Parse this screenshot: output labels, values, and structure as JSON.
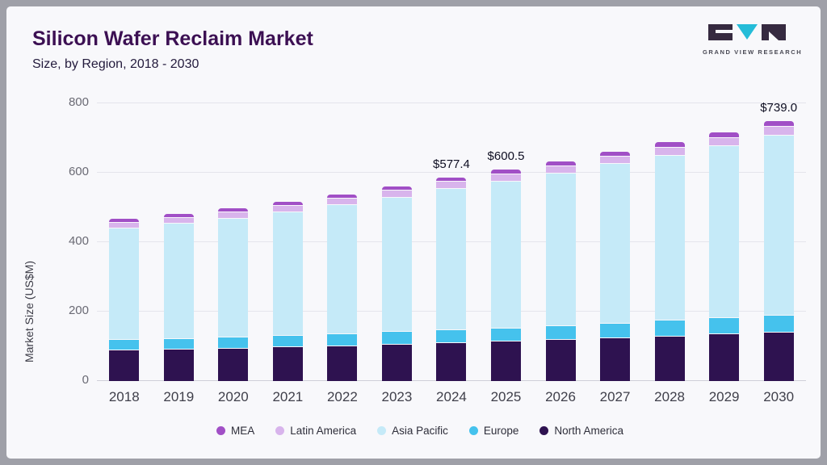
{
  "header": {
    "title": "Silicon Wafer Reclaim Market",
    "subtitle": "Size, by Region, 2018 - 2030"
  },
  "logo": {
    "text": "GRAND VIEW RESEARCH",
    "dark_color": "#362a40",
    "accent_color": "#25bcd8"
  },
  "chart_data": {
    "type": "bar",
    "stacked": true,
    "title": "Silicon Wafer Reclaim Market Size, by Region, 2018 - 2030",
    "ylabel": "Market Size (US$M)",
    "ylim": [
      0,
      800
    ],
    "yticks": [
      0,
      200,
      400,
      600,
      800
    ],
    "grid": true,
    "legend_position": "bottom",
    "categories": [
      "2018",
      "2019",
      "2020",
      "2021",
      "2022",
      "2023",
      "2024",
      "2025",
      "2026",
      "2027",
      "2028",
      "2029",
      "2030"
    ],
    "series": [
      {
        "name": "North America",
        "color": "#2e1250",
        "values": [
          88,
          90,
          93,
          97,
          101,
          105,
          109,
          113,
          118,
          123,
          128,
          134,
          140
        ]
      },
      {
        "name": "Europe",
        "color": "#45c2ed",
        "values": [
          28,
          29,
          30,
          31,
          32,
          34,
          35,
          37,
          39,
          41,
          43,
          45,
          47
        ]
      },
      {
        "name": "Asia Pacific",
        "color": "#c5eaf8",
        "values": [
          320,
          330,
          341,
          354,
          370,
          385,
          405,
          421,
          436,
          456,
          474,
          493,
          516
        ]
      },
      {
        "name": "Latin America",
        "color": "#d8b4ec",
        "values": [
          14,
          15,
          15.5,
          16,
          16.5,
          17,
          18,
          18.5,
          19.5,
          20,
          20.5,
          21.5,
          22
        ]
      },
      {
        "name": "MEA",
        "color": "#a14fc6",
        "values": [
          8,
          8,
          8.5,
          9,
          9.5,
          10,
          10.4,
          11,
          11.5,
          12,
          12.5,
          13.5,
          14
        ]
      }
    ],
    "annotations": [
      {
        "category": "2024",
        "label": "$577.4"
      },
      {
        "category": "2025",
        "label": "$600.5"
      },
      {
        "category": "2030",
        "label": "$739.0"
      }
    ],
    "legend_order": [
      "MEA",
      "Latin America",
      "Asia Pacific",
      "Europe",
      "North America"
    ]
  }
}
